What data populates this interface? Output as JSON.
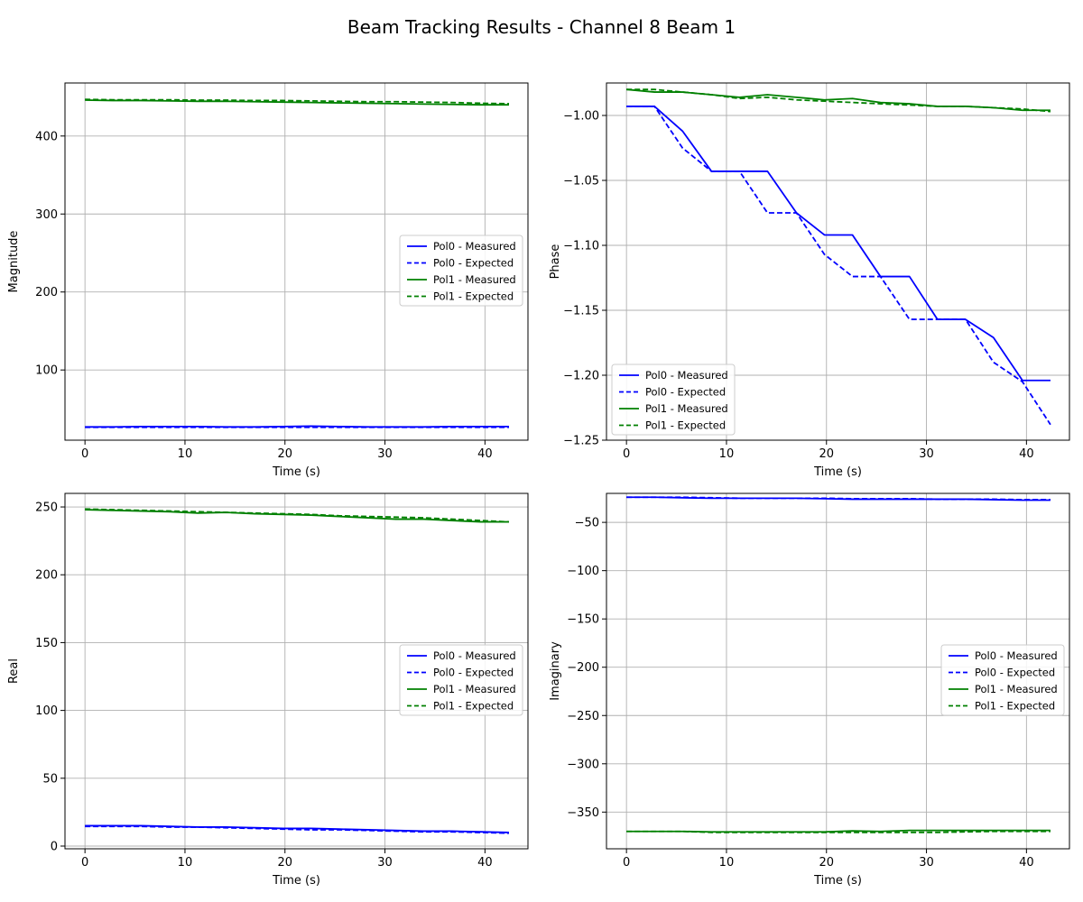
{
  "figure": {
    "title": "Beam Tracking Results - Channel 8 Beam 1"
  },
  "colors": {
    "pol0": "#0000ff",
    "pol1": "#008000",
    "grid": "#b0b0b0"
  },
  "chart_data": [
    {
      "type": "line",
      "xlabel": "Time (s)",
      "ylabel": "Magnitude",
      "xlim": [
        -2,
        44.3
      ],
      "ylim": [
        10,
        468
      ],
      "xticks": [
        0,
        10,
        20,
        30,
        40
      ],
      "xtick_labels": [
        "0",
        "10",
        "20",
        "30",
        "40"
      ],
      "yticks": [
        100,
        200,
        300,
        400
      ],
      "ytick_labels": [
        "100",
        "200",
        "300",
        "400"
      ],
      "grid": true,
      "legend_position": "center-right",
      "x": [
        0,
        2.8,
        5.6,
        8.5,
        11.3,
        14.1,
        17.0,
        19.8,
        22.6,
        25.4,
        28.3,
        31.1,
        33.9,
        36.7,
        39.6,
        42.4
      ],
      "series": [
        {
          "name": "Pol0 - Measured",
          "style": "solid",
          "color": "#0000ff",
          "values": [
            27,
            27,
            27.5,
            27.5,
            27.5,
            27,
            27,
            27.5,
            28,
            27.5,
            27,
            27,
            27,
            27.5,
            27.5,
            27.5
          ]
        },
        {
          "name": "Pol0 - Expected",
          "style": "dashed",
          "color": "#0000ff",
          "values": [
            26.5,
            26.5,
            26.5,
            26.5,
            26.5,
            26.5,
            26.5,
            26.5,
            26.5,
            26.5,
            26.5,
            26.5,
            26.5,
            26.5,
            26.5,
            26.5
          ]
        },
        {
          "name": "Pol1 - Measured",
          "style": "solid",
          "color": "#008000",
          "values": [
            446,
            445.5,
            445.5,
            445,
            444.5,
            444.5,
            444,
            443.5,
            443,
            442.5,
            442,
            441.5,
            441,
            440.5,
            440,
            440
          ]
        },
        {
          "name": "Pol1 - Expected",
          "style": "dashed",
          "color": "#008000",
          "values": [
            447,
            446.5,
            446.5,
            446.5,
            446,
            446,
            445.5,
            445.5,
            445,
            444.5,
            444,
            444,
            443.5,
            443,
            442,
            441.5
          ]
        }
      ]
    },
    {
      "type": "line",
      "xlabel": "Time (s)",
      "ylabel": "Phase",
      "xlim": [
        -2,
        44.3
      ],
      "ylim": [
        -1.25,
        -0.975
      ],
      "xticks": [
        0,
        10,
        20,
        30,
        40
      ],
      "xtick_labels": [
        "0",
        "10",
        "20",
        "30",
        "40"
      ],
      "yticks": [
        -1.25,
        -1.2,
        -1.15,
        -1.1,
        -1.05,
        -1.0
      ],
      "ytick_labels": [
        "−1.25",
        "−1.20",
        "−1.15",
        "−1.10",
        "−1.05",
        "−1.00"
      ],
      "grid": true,
      "legend_position": "lower-left",
      "x": [
        0,
        2.8,
        5.6,
        8.5,
        11.3,
        14.1,
        17.0,
        19.8,
        22.6,
        25.4,
        28.3,
        31.1,
        33.9,
        36.7,
        39.6,
        42.4
      ],
      "series": [
        {
          "name": "Pol0 - Measured",
          "style": "solid",
          "color": "#0000ff",
          "values": [
            -0.993,
            -0.993,
            -1.012,
            -1.043,
            -1.043,
            -1.043,
            -1.075,
            -1.092,
            -1.092,
            -1.124,
            -1.124,
            -1.157,
            -1.157,
            -1.171,
            -1.204,
            -1.204
          ]
        },
        {
          "name": "Pol0 - Expected",
          "style": "dashed",
          "color": "#0000ff",
          "values": [
            -0.993,
            -0.993,
            -1.025,
            -1.043,
            -1.043,
            -1.075,
            -1.075,
            -1.107,
            -1.124,
            -1.124,
            -1.157,
            -1.157,
            -1.157,
            -1.19,
            -1.205,
            -1.238
          ]
        },
        {
          "name": "Pol1 - Measured",
          "style": "solid",
          "color": "#008000",
          "values": [
            -0.98,
            -0.982,
            -0.982,
            -0.984,
            -0.986,
            -0.984,
            -0.986,
            -0.988,
            -0.987,
            -0.99,
            -0.991,
            -0.993,
            -0.993,
            -0.994,
            -0.996,
            -0.996
          ]
        },
        {
          "name": "Pol1 - Expected",
          "style": "dashed",
          "color": "#008000",
          "values": [
            -0.98,
            -0.98,
            -0.982,
            -0.984,
            -0.987,
            -0.986,
            -0.988,
            -0.989,
            -0.99,
            -0.991,
            -0.992,
            -0.993,
            -0.993,
            -0.994,
            -0.995,
            -0.997
          ]
        }
      ]
    },
    {
      "type": "line",
      "xlabel": "Time (s)",
      "ylabel": "Real",
      "xlim": [
        -2,
        44.3
      ],
      "ylim": [
        -2,
        260
      ],
      "xticks": [
        0,
        10,
        20,
        30,
        40
      ],
      "xtick_labels": [
        "0",
        "10",
        "20",
        "30",
        "40"
      ],
      "yticks": [
        0,
        50,
        100,
        150,
        200,
        250
      ],
      "ytick_labels": [
        "0",
        "50",
        "100",
        "150",
        "200",
        "250"
      ],
      "grid": true,
      "legend_position": "center-right",
      "x": [
        0,
        2.8,
        5.6,
        8.5,
        11.3,
        14.1,
        17.0,
        19.8,
        22.6,
        25.4,
        28.3,
        31.1,
        33.9,
        36.7,
        39.6,
        42.4
      ],
      "series": [
        {
          "name": "Pol0 - Measured",
          "style": "solid",
          "color": "#0000ff",
          "values": [
            15,
            15,
            15,
            14.5,
            14,
            14,
            13.5,
            13,
            13,
            12.5,
            12,
            11.5,
            11,
            11,
            10.5,
            10
          ]
        },
        {
          "name": "Pol0 - Expected",
          "style": "dashed",
          "color": "#0000ff",
          "values": [
            14.5,
            14.5,
            14.5,
            14,
            14,
            13.5,
            13,
            12.5,
            12,
            12,
            11.5,
            11,
            10.5,
            10.5,
            10,
            9.5
          ]
        },
        {
          "name": "Pol1 - Measured",
          "style": "solid",
          "color": "#008000",
          "values": [
            248,
            247.5,
            247,
            246.5,
            245.5,
            246,
            245,
            244.5,
            244,
            243,
            242,
            241,
            241,
            240,
            239,
            239
          ]
        },
        {
          "name": "Pol1 - Expected",
          "style": "dashed",
          "color": "#008000",
          "values": [
            248.5,
            248,
            247.5,
            247,
            246.5,
            246,
            245.5,
            245,
            244.5,
            243.5,
            243,
            242.5,
            242,
            241,
            240,
            239
          ]
        }
      ]
    },
    {
      "type": "line",
      "xlabel": "Time (s)",
      "ylabel": "Imaginary",
      "xlim": [
        -2,
        44.3
      ],
      "ylim": [
        -388,
        -20
      ],
      "xticks": [
        0,
        10,
        20,
        30,
        40
      ],
      "xtick_labels": [
        "0",
        "10",
        "20",
        "30",
        "40"
      ],
      "yticks": [
        -350,
        -300,
        -250,
        -200,
        -150,
        -100,
        -50
      ],
      "ytick_labels": [
        "−350",
        "−300",
        "−250",
        "−200",
        "−150",
        "−100",
        "−50"
      ],
      "grid": true,
      "legend_position": "center-right",
      "x": [
        0,
        2.8,
        5.6,
        8.5,
        11.3,
        14.1,
        17.0,
        19.8,
        22.6,
        25.4,
        28.3,
        31.1,
        33.9,
        36.7,
        39.6,
        42.4
      ],
      "series": [
        {
          "name": "Pol0 - Measured",
          "style": "solid",
          "color": "#0000ff",
          "values": [
            -24,
            -24,
            -24.5,
            -25,
            -25,
            -25,
            -25,
            -25.5,
            -26,
            -26,
            -26,
            -26,
            -26,
            -26.5,
            -27,
            -27
          ]
        },
        {
          "name": "Pol0 - Expected",
          "style": "dashed",
          "color": "#0000ff",
          "values": [
            -24,
            -24,
            -24,
            -24.5,
            -25,
            -25,
            -25,
            -25,
            -25.5,
            -25.5,
            -25.5,
            -26,
            -26,
            -26,
            -26.5,
            -26.5
          ]
        },
        {
          "name": "Pol1 - Measured",
          "style": "solid",
          "color": "#008000",
          "values": [
            -370,
            -370,
            -370,
            -370.5,
            -370.5,
            -370.5,
            -370.5,
            -370.5,
            -369.5,
            -370,
            -369,
            -369,
            -369,
            -369,
            -369,
            -369
          ]
        },
        {
          "name": "Pol1 - Expected",
          "style": "dashed",
          "color": "#008000",
          "values": [
            -370,
            -370,
            -370,
            -371,
            -371,
            -371,
            -371,
            -371,
            -371,
            -371,
            -371,
            -371,
            -370.5,
            -370,
            -370,
            -370
          ]
        }
      ]
    }
  ]
}
